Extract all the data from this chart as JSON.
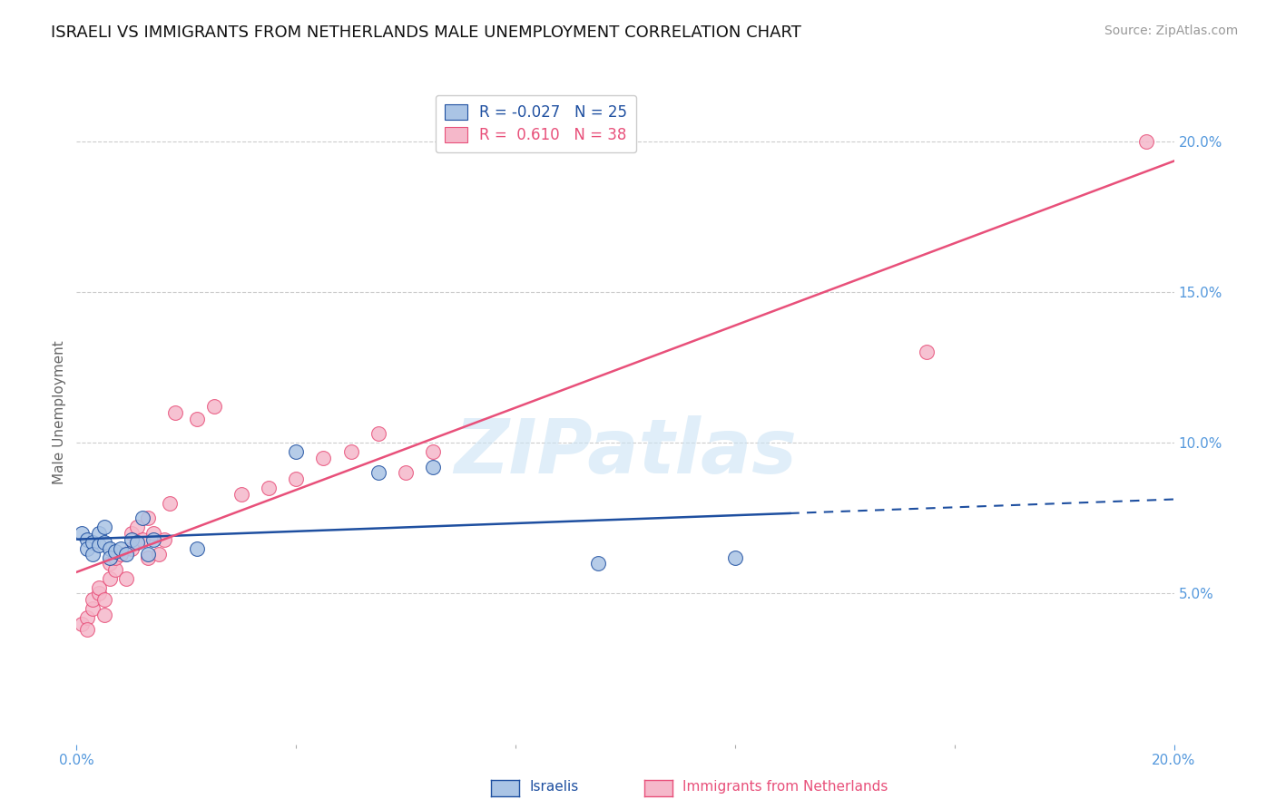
{
  "title": "ISRAELI VS IMMIGRANTS FROM NETHERLANDS MALE UNEMPLOYMENT CORRELATION CHART",
  "source": "Source: ZipAtlas.com",
  "ylabel": "Male Unemployment",
  "watermark": "ZIPatlas",
  "xlim": [
    0.0,
    0.2
  ],
  "ylim": [
    0.0,
    0.22
  ],
  "yticks": [
    0.05,
    0.1,
    0.15,
    0.2
  ],
  "ytick_labels": [
    "5.0%",
    "10.0%",
    "15.0%",
    "20.0%"
  ],
  "israelis_x": [
    0.001,
    0.002,
    0.002,
    0.003,
    0.003,
    0.004,
    0.004,
    0.005,
    0.005,
    0.006,
    0.006,
    0.007,
    0.008,
    0.009,
    0.01,
    0.011,
    0.012,
    0.013,
    0.014,
    0.022,
    0.04,
    0.055,
    0.065,
    0.095,
    0.12
  ],
  "israelis_y": [
    0.07,
    0.068,
    0.065,
    0.067,
    0.063,
    0.07,
    0.066,
    0.072,
    0.067,
    0.065,
    0.062,
    0.064,
    0.065,
    0.063,
    0.068,
    0.067,
    0.075,
    0.063,
    0.068,
    0.065,
    0.097,
    0.09,
    0.092,
    0.06,
    0.062
  ],
  "netherlands_x": [
    0.001,
    0.002,
    0.002,
    0.003,
    0.003,
    0.004,
    0.004,
    0.005,
    0.005,
    0.006,
    0.006,
    0.007,
    0.007,
    0.008,
    0.009,
    0.01,
    0.01,
    0.011,
    0.012,
    0.013,
    0.013,
    0.014,
    0.015,
    0.016,
    0.017,
    0.018,
    0.022,
    0.025,
    0.03,
    0.035,
    0.04,
    0.045,
    0.05,
    0.055,
    0.06,
    0.065,
    0.155,
    0.195
  ],
  "netherlands_y": [
    0.04,
    0.042,
    0.038,
    0.045,
    0.048,
    0.05,
    0.052,
    0.043,
    0.048,
    0.055,
    0.06,
    0.058,
    0.062,
    0.063,
    0.055,
    0.065,
    0.07,
    0.072,
    0.068,
    0.075,
    0.062,
    0.07,
    0.063,
    0.068,
    0.08,
    0.11,
    0.108,
    0.112,
    0.083,
    0.085,
    0.088,
    0.095,
    0.097,
    0.103,
    0.09,
    0.097,
    0.13,
    0.2
  ],
  "israelis_color": "#aac4e5",
  "netherlands_color": "#f5b8ca",
  "israelis_line_color": "#1e4fa0",
  "netherlands_line_color": "#e8507a",
  "israelis_R": -0.027,
  "israelis_N": 25,
  "netherlands_R": 0.61,
  "netherlands_N": 38,
  "title_fontsize": 13,
  "source_fontsize": 10,
  "label_fontsize": 11,
  "legend_fontsize": 12,
  "background_color": "#ffffff",
  "grid_color": "#cccccc",
  "right_axis_color": "#5599dd",
  "bottom_axis_color": "#5599dd"
}
